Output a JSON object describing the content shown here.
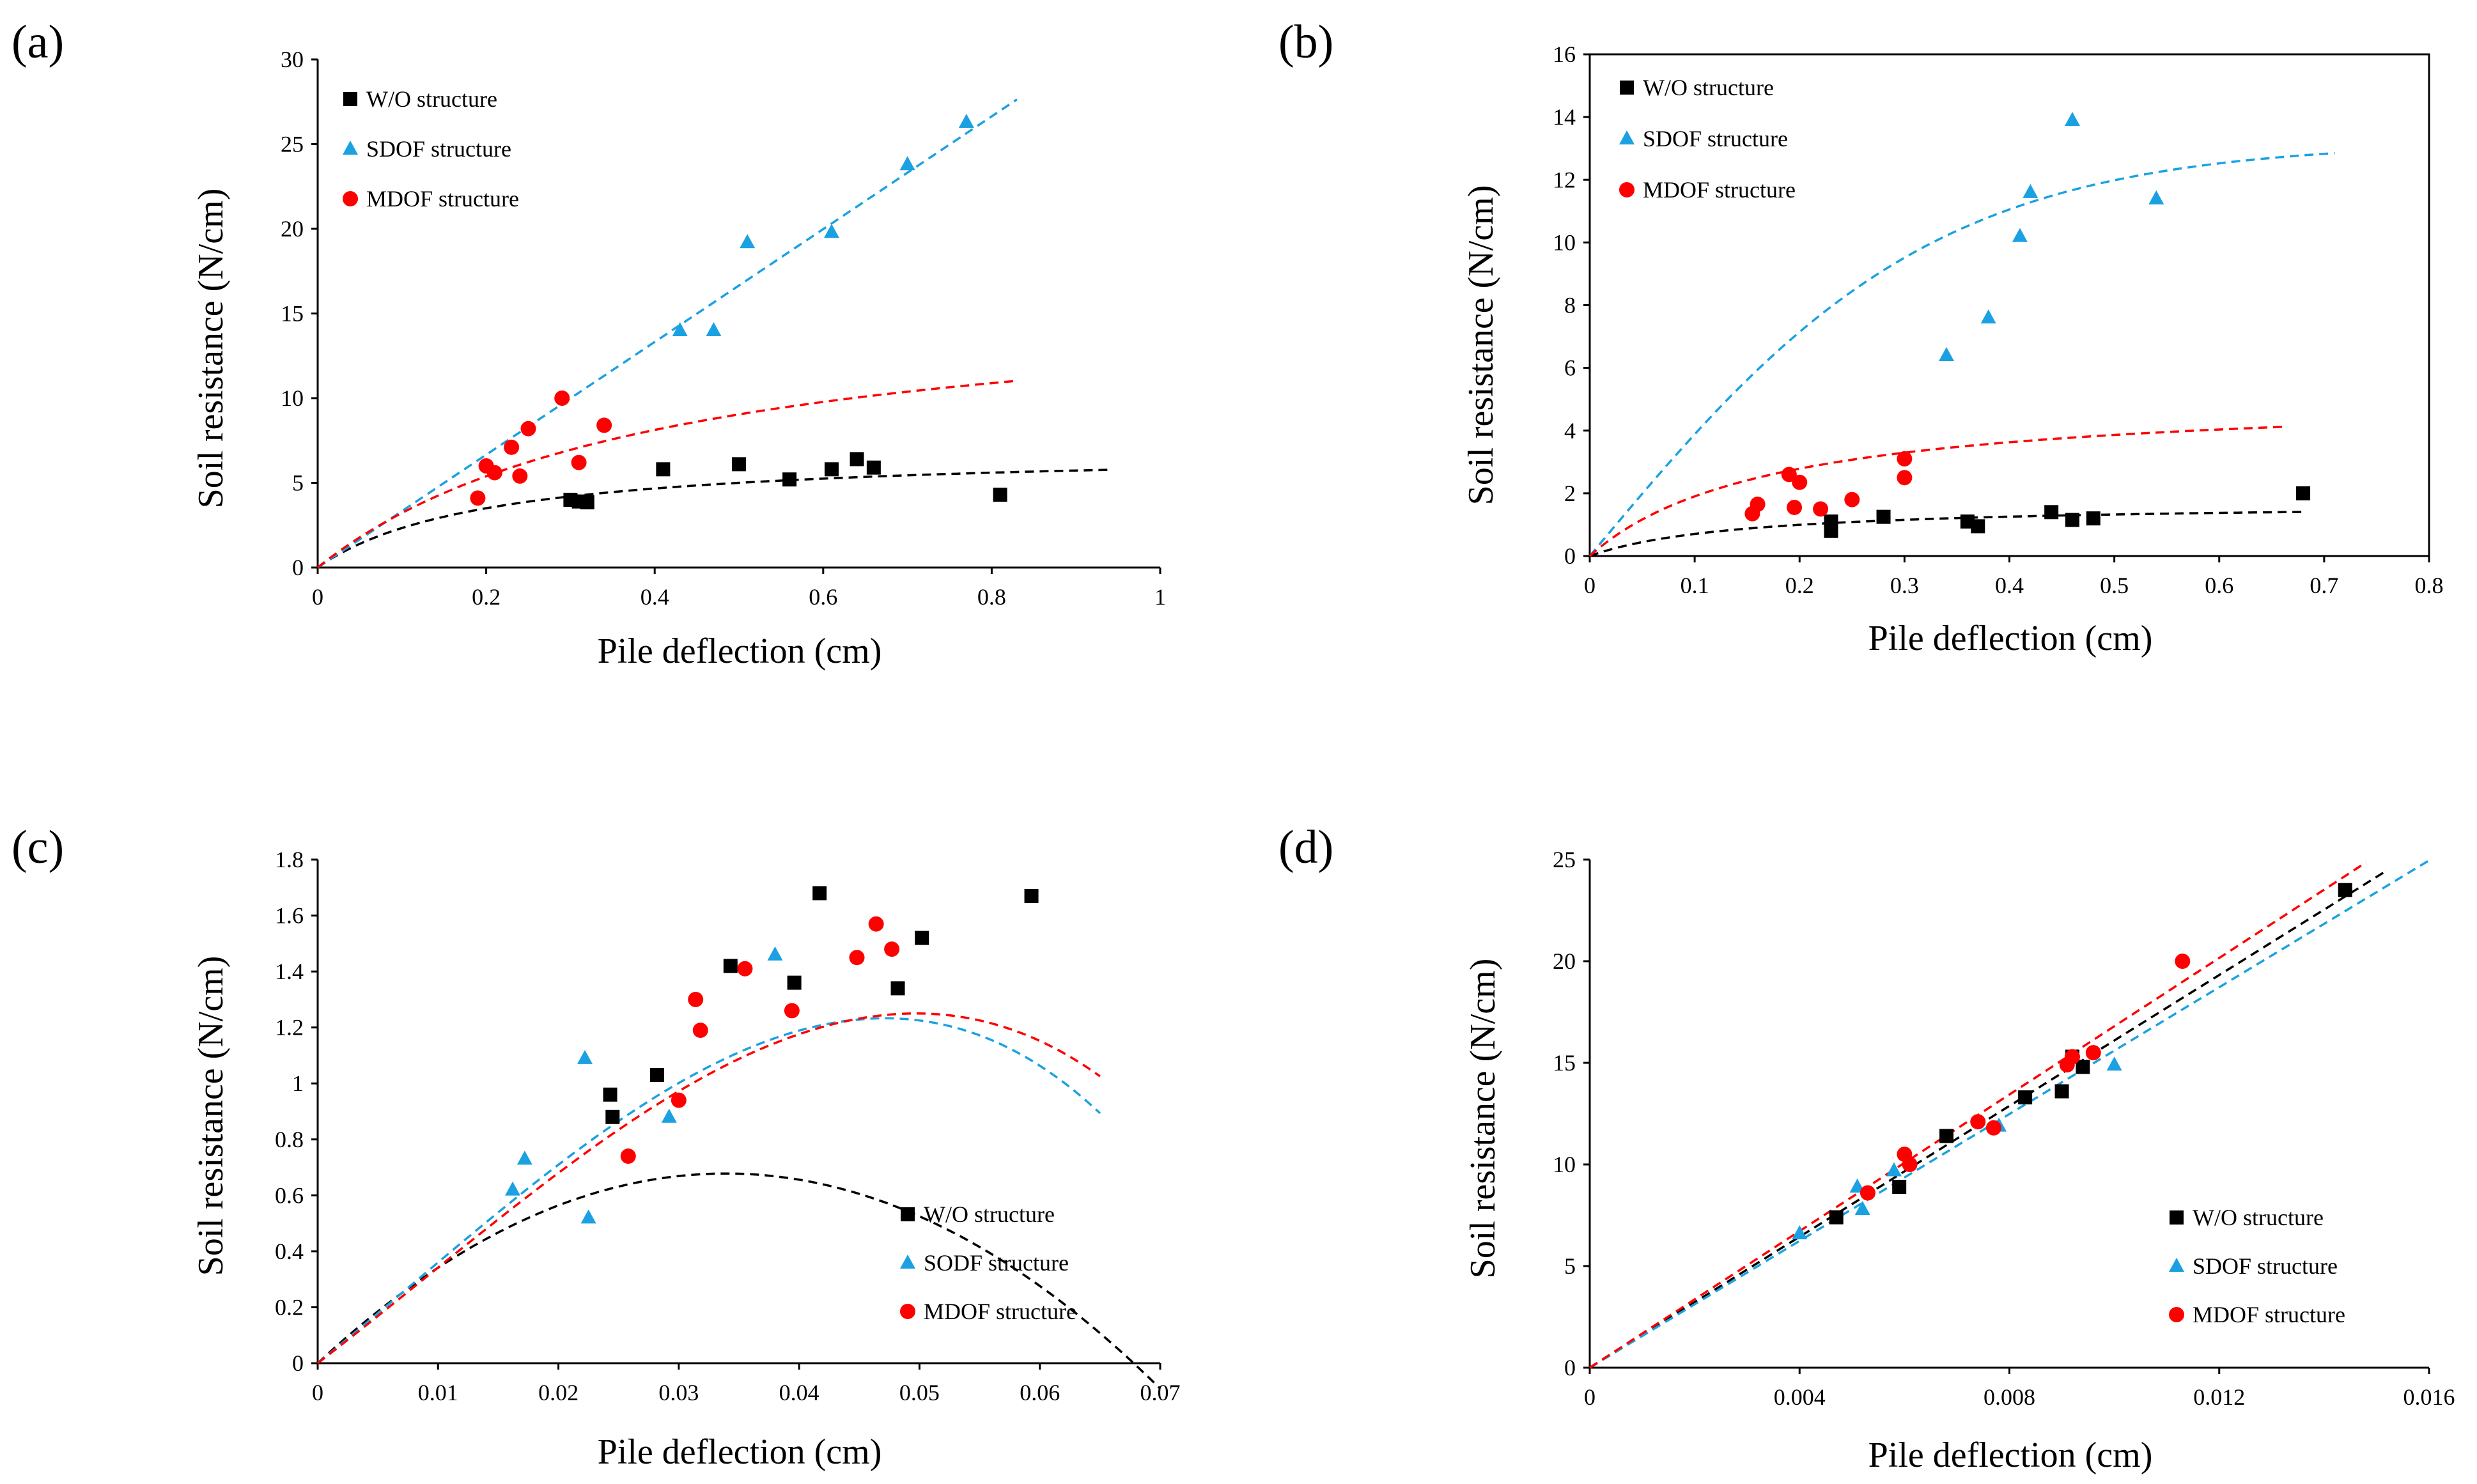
{
  "colors": {
    "wo": "#000000",
    "sdof": "#1ba1e2",
    "mdof": "#ff0000"
  },
  "chart_data": [
    {
      "id": "a",
      "panel_label": "(a)",
      "type": "scatter",
      "xlabel": "Pile deflection  (cm)",
      "ylabel": "Soil resistance  (N/cm)",
      "xlim": [
        0,
        1
      ],
      "ylim": [
        0,
        30
      ],
      "xticks": [
        0,
        0.2,
        0.4,
        0.6,
        0.8,
        1
      ],
      "xtick_labels": [
        "0",
        "0.2",
        "0.4",
        "0.6",
        "0.8",
        "1"
      ],
      "yticks": [
        0,
        5,
        10,
        15,
        20,
        25,
        30
      ],
      "ytick_labels": [
        "0",
        "5",
        "10",
        "15",
        "20",
        "25",
        "30"
      ],
      "frame": "open",
      "legend_position": "top-left",
      "legend_order": [
        "wo",
        "sdof",
        "mdof"
      ],
      "series": {
        "wo": {
          "name": "W/O structure",
          "marker": "square",
          "points": [
            [
              0.3,
              4.0
            ],
            [
              0.31,
              3.9
            ],
            [
              0.32,
              3.85
            ],
            [
              0.41,
              5.8
            ],
            [
              0.5,
              6.1
            ],
            [
              0.56,
              5.2
            ],
            [
              0.61,
              5.8
            ],
            [
              0.64,
              6.4
            ],
            [
              0.66,
              5.9
            ],
            [
              0.81,
              4.3
            ]
          ],
          "fit": {
            "shape": "hyper",
            "k": 35,
            "pu": 7,
            "xmax": 0.94
          }
        },
        "sdof": {
          "name": "SDOF structure",
          "marker": "triangle",
          "points": [
            [
              0.43,
              14.0
            ],
            [
              0.47,
              14.0
            ],
            [
              0.51,
              19.2
            ],
            [
              0.61,
              19.8
            ],
            [
              0.7,
              23.8
            ],
            [
              0.77,
              26.3
            ]
          ],
          "fit": {
            "shape": "linear",
            "k": 33.3,
            "xmax": 0.83
          }
        },
        "mdof": {
          "name": "MDOF structure",
          "marker": "circle",
          "points": [
            [
              0.19,
              4.1
            ],
            [
              0.2,
              6.0
            ],
            [
              0.21,
              5.6
            ],
            [
              0.23,
              7.1
            ],
            [
              0.24,
              5.4
            ],
            [
              0.25,
              8.2
            ],
            [
              0.29,
              10.0
            ],
            [
              0.31,
              6.2
            ],
            [
              0.34,
              8.4
            ]
          ],
          "fit": {
            "shape": "hyper",
            "k": 40,
            "pu": 16.5,
            "xmax": 0.83
          }
        }
      }
    },
    {
      "id": "b",
      "panel_label": "(b)",
      "type": "scatter",
      "xlabel": "Pile deflection  (cm)",
      "ylabel": "Soil resistance  (N/cm)",
      "xlim": [
        0,
        0.8
      ],
      "ylim": [
        0,
        16
      ],
      "xticks": [
        0,
        0.1,
        0.2,
        0.3,
        0.4,
        0.5,
        0.6,
        0.7,
        0.8
      ],
      "xtick_labels": [
        "0",
        "0.1",
        "0.2",
        "0.3",
        "0.4",
        "0.5",
        "0.6",
        "0.7",
        "0.8"
      ],
      "yticks": [
        0,
        2,
        4,
        6,
        8,
        10,
        12,
        14,
        16
      ],
      "ytick_labels": [
        "0",
        "2",
        "4",
        "6",
        "8",
        "10",
        "12",
        "14",
        "16"
      ],
      "frame": "box",
      "legend_position": "top-left",
      "legend_order": [
        "wo",
        "sdof",
        "mdof"
      ],
      "series": {
        "wo": {
          "name": "W/O structure",
          "marker": "square",
          "points": [
            [
              0.23,
              1.1
            ],
            [
              0.23,
              0.8
            ],
            [
              0.28,
              1.25
            ],
            [
              0.36,
              1.1
            ],
            [
              0.37,
              0.95
            ],
            [
              0.44,
              1.4
            ],
            [
              0.46,
              1.15
            ],
            [
              0.48,
              1.2
            ],
            [
              0.68,
              2.0
            ]
          ],
          "fit": {
            "shape": "hyper",
            "k": 12,
            "pu": 1.7,
            "xmax": 0.68
          }
        },
        "sdof": {
          "name": "SDOF structure",
          "marker": "triangle",
          "points": [
            [
              0.34,
              6.4
            ],
            [
              0.38,
              7.6
            ],
            [
              0.41,
              10.2
            ],
            [
              0.42,
              11.6
            ],
            [
              0.46,
              13.9
            ],
            [
              0.54,
              11.4
            ]
          ],
          "fit": {
            "shape": "tanh",
            "k": 40,
            "pu": 13.2,
            "xmax": 0.71
          }
        },
        "mdof": {
          "name": "MDOF structure",
          "marker": "circle",
          "points": [
            [
              0.155,
              1.35
            ],
            [
              0.16,
              1.65
            ],
            [
              0.19,
              2.6
            ],
            [
              0.195,
              1.55
            ],
            [
              0.2,
              2.35
            ],
            [
              0.22,
              1.5
            ],
            [
              0.25,
              1.8
            ],
            [
              0.3,
              3.1
            ],
            [
              0.3,
              2.5
            ]
          ],
          "fit": {
            "shape": "hyper",
            "k": 30,
            "pu": 5.2,
            "xmax": 0.66
          }
        }
      }
    },
    {
      "id": "c",
      "panel_label": "(c)",
      "type": "scatter",
      "xlabel": "Pile deflection  (cm)",
      "ylabel": "Soil resistance  (N/cm)",
      "xlim": [
        0,
        0.07
      ],
      "ylim": [
        0,
        1.8
      ],
      "xticks": [
        0,
        0.01,
        0.02,
        0.03,
        0.04,
        0.05,
        0.06,
        0.07
      ],
      "xtick_labels": [
        "0",
        "0.01",
        "0.02",
        "0.03",
        "0.04",
        "0.05",
        "0.06",
        "0.07"
      ],
      "yticks": [
        0,
        0.2,
        0.4,
        0.6,
        0.8,
        1.0,
        1.2,
        1.4,
        1.6,
        1.8
      ],
      "ytick_labels": [
        "0",
        "0.2",
        "0.4",
        "0.6",
        "0.8",
        "1",
        "1.2",
        "1.4",
        "1.6",
        "1.8"
      ],
      "frame": "open",
      "legend_position": "bottom-right",
      "legend_order": [
        "wo",
        "sdof",
        "mdof"
      ],
      "series": {
        "wo": {
          "name": "W/O structure",
          "marker": "square",
          "points": [
            [
              0.0243,
              0.96
            ],
            [
              0.0245,
              0.88
            ],
            [
              0.0282,
              1.03
            ],
            [
              0.0343,
              1.42
            ],
            [
              0.0396,
              1.36
            ],
            [
              0.0417,
              1.68
            ],
            [
              0.0482,
              1.34
            ],
            [
              0.0502,
              1.52
            ],
            [
              0.0593,
              1.67
            ]
          ],
          "fit": {
            "shape": "poly",
            "coef": [
              40,
              -590
            ],
            "xmax": 0.07
          }
        },
        "sdof": {
          "name": "SODF structure",
          "marker": "triangle",
          "points": [
            [
              0.0162,
              0.62
            ],
            [
              0.0172,
              0.73
            ],
            [
              0.0222,
              1.09
            ],
            [
              0.0225,
              0.52
            ],
            [
              0.0292,
              0.88
            ],
            [
              0.038,
              1.46
            ]
          ],
          "fit": {
            "shape": "cubic",
            "coef": [
              35,
              180,
              -7800
            ],
            "xmax": 0.065
          }
        },
        "mdof": {
          "name": "MDOF structure",
          "marker": "circle",
          "points": [
            [
              0.0258,
              0.74
            ],
            [
              0.03,
              0.94
            ],
            [
              0.0314,
              1.3
            ],
            [
              0.0318,
              1.19
            ],
            [
              0.0355,
              1.41
            ],
            [
              0.0394,
              1.26
            ],
            [
              0.0448,
              1.45
            ],
            [
              0.0464,
              1.57
            ],
            [
              0.0477,
              1.48
            ]
          ],
          "fit": {
            "shape": "cubic",
            "coef": [
              33,
              190,
              -7000
            ],
            "xmax": 0.065
          }
        }
      }
    },
    {
      "id": "d",
      "panel_label": "(d)",
      "type": "scatter",
      "xlabel": "Pile deflection  (cm)",
      "ylabel": "Soil resistance  (N/cm)",
      "xlim": [
        0,
        0.016
      ],
      "ylim": [
        0,
        25
      ],
      "xticks": [
        0,
        0.004,
        0.008,
        0.012,
        0.016
      ],
      "xtick_labels": [
        "0",
        "0.004",
        "0.008",
        "0.012",
        "0.016"
      ],
      "yticks": [
        0,
        5,
        10,
        15,
        20,
        25
      ],
      "ytick_labels": [
        "0",
        "5",
        "10",
        "15",
        "20",
        "25"
      ],
      "frame": "open",
      "legend_position": "bottom-right",
      "legend_order": [
        "wo",
        "sdof",
        "mdof"
      ],
      "series": {
        "wo": {
          "name": "W/O structure",
          "marker": "square",
          "points": [
            [
              0.0047,
              7.4
            ],
            [
              0.0059,
              8.9
            ],
            [
              0.0068,
              11.4
            ],
            [
              0.0083,
              13.3
            ],
            [
              0.009,
              13.6
            ],
            [
              0.0092,
              15.3
            ],
            [
              0.0094,
              14.8
            ],
            [
              0.0144,
              23.5
            ]
          ],
          "fit": {
            "shape": "linear",
            "k": 1610,
            "xmax": 0.0152
          }
        },
        "sdof": {
          "name": "SDOF structure",
          "marker": "triangle",
          "points": [
            [
              0.004,
              6.6
            ],
            [
              0.0051,
              8.9
            ],
            [
              0.0052,
              7.8
            ],
            [
              0.0058,
              9.7
            ],
            [
              0.0078,
              11.9
            ],
            [
              0.01,
              14.9
            ]
          ],
          "fit": {
            "shape": "linear",
            "k": 1560,
            "xmax": 0.016
          }
        },
        "mdof": {
          "name": "MDOF structure",
          "marker": "circle",
          "points": [
            [
              0.0053,
              8.6
            ],
            [
              0.006,
              10.5
            ],
            [
              0.0061,
              10.0
            ],
            [
              0.0074,
              12.1
            ],
            [
              0.0077,
              11.8
            ],
            [
              0.0091,
              14.9
            ],
            [
              0.0092,
              15.3
            ],
            [
              0.0096,
              15.5
            ],
            [
              0.0113,
              20.0
            ]
          ],
          "fit": {
            "shape": "linear",
            "k": 1680,
            "xmax": 0.0148
          }
        }
      }
    }
  ]
}
